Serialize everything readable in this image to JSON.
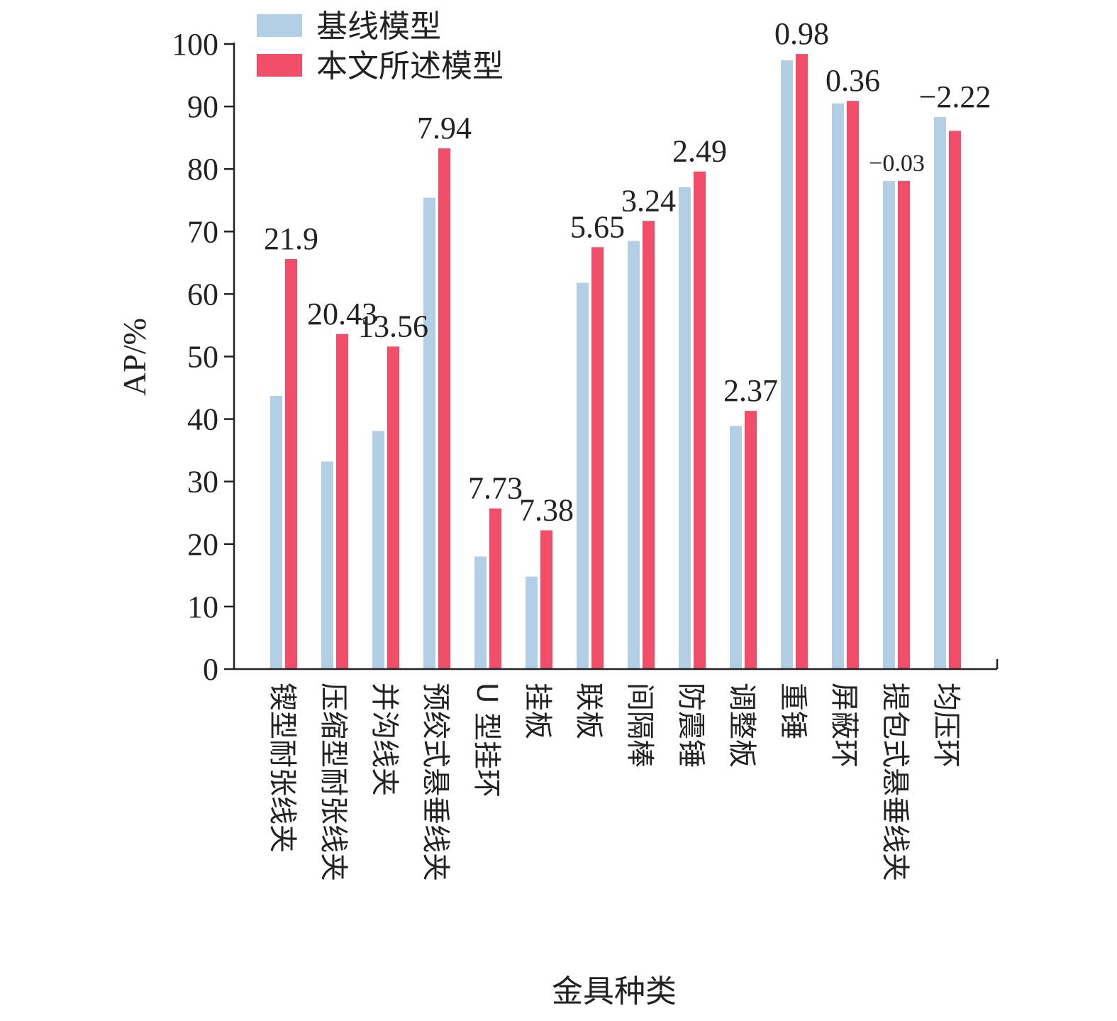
{
  "chart_data": {
    "type": "bar",
    "categories": [
      "锲型耐张线夹",
      "压缩型耐张线夹",
      "并沟线夹",
      "预绞式悬垂线夹",
      "U 型挂环",
      "挂板",
      "联板",
      "间隔棒",
      "防震锤",
      "调整板",
      "重锤",
      "屏蔽环",
      "提包式悬垂线夹",
      "均压环"
    ],
    "series": [
      {
        "name": "基线模型",
        "color": "#b3cfe6",
        "values": [
          43.7,
          33.2,
          38.1,
          75.4,
          18.0,
          14.8,
          61.8,
          68.5,
          77.1,
          38.9,
          97.4,
          90.5,
          78.1,
          88.3
        ]
      },
      {
        "name": "本文所述模型",
        "color": "#f04e69",
        "values": [
          65.6,
          53.6,
          51.6,
          83.3,
          25.7,
          22.2,
          67.5,
          71.7,
          79.6,
          41.3,
          98.4,
          90.9,
          78.1,
          86.1
        ]
      }
    ],
    "bar_labels": [
      "21.9",
      "20.43",
      "13.56",
      "7.94",
      "7.73",
      "7.38",
      "5.65",
      "3.24",
      "2.49",
      "2.37",
      "0.98",
      "0.36",
      "−0.03",
      "−2.22"
    ],
    "ylabel": "AP/%",
    "xlabel": "金具种类",
    "ylim": [
      0,
      100
    ],
    "yticks": [
      0,
      10,
      20,
      30,
      40,
      50,
      60,
      70,
      80,
      90,
      100
    ],
    "grid": false,
    "legend": "top-left"
  }
}
